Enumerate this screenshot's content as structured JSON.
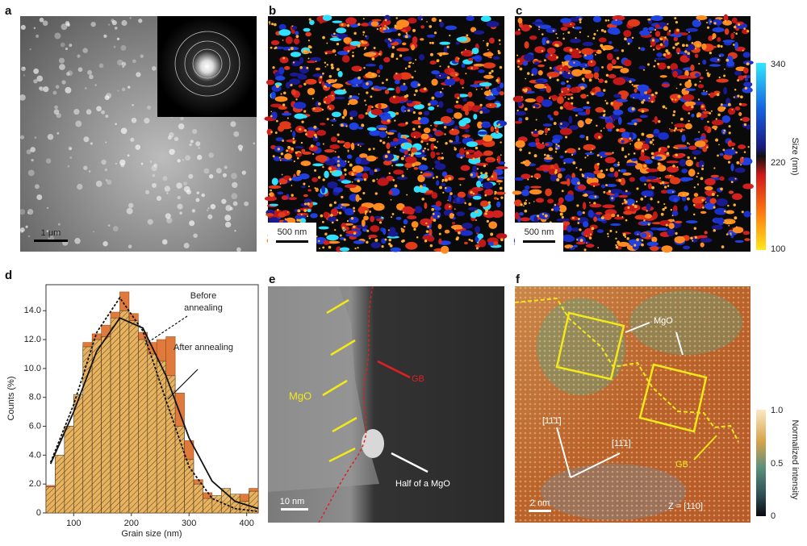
{
  "panels": {
    "a": {
      "letter": "a",
      "scale_bar": "1 μm"
    },
    "b": {
      "letter": "b",
      "scale_bar": "500 nm"
    },
    "c": {
      "letter": "c",
      "scale_bar": "500 nm",
      "colorbar": {
        "title": "Size (nm)",
        "ticks": [
          "340",
          "220",
          "100"
        ]
      }
    },
    "d": {
      "letter": "d"
    },
    "e": {
      "letter": "e",
      "mgo": "MgO",
      "gb": "GB",
      "half": "Half of a MgO",
      "scale_bar": "10 nm"
    },
    "f": {
      "letter": "f",
      "mgo": "MgO",
      "gb": "GB",
      "dir1": "[11̄1̄]",
      "dir2": "[11̄1]",
      "zone": "Z = [110]",
      "scale_bar": "2 nm",
      "colorbar": {
        "title": "Normalized intensity",
        "ticks": [
          "1.0",
          "0.5",
          "0"
        ]
      }
    }
  },
  "chart_data": {
    "type": "histogram",
    "x_label": "Grain size (nm)",
    "y_label": "Counts (%)",
    "bins": [
      52,
      68,
      84,
      100,
      116,
      132,
      148,
      164,
      180,
      196,
      212,
      228,
      244,
      260,
      276,
      292,
      308,
      324,
      340,
      356,
      372,
      388,
      404,
      420
    ],
    "series": [
      {
        "name": "Before annealing",
        "color": "#e07a3c",
        "values": [
          1.9,
          3.8,
          6.0,
          8.0,
          11.8,
          12.4,
          13.0,
          13.9,
          15.3,
          13.8,
          12.5,
          11.8,
          12.0,
          12.2,
          8.3,
          5.0,
          2.3,
          1.4,
          1.0,
          0.8,
          1.2,
          1.3,
          1.7
        ],
        "fit": [
          3.5,
          7.5,
          12.5,
          14.9,
          12.6,
          7.8,
          3.2,
          1.0,
          0.3,
          0.1
        ]
      },
      {
        "name": "After annealing",
        "color": "#e9b863",
        "values": [
          1.8,
          4.0,
          6.0,
          8.2,
          11.5,
          12.0,
          12.2,
          13.5,
          14.0,
          13.3,
          12.0,
          11.0,
          10.5,
          9.5,
          6.0,
          3.7,
          2.0,
          1.0,
          1.2,
          1.7,
          1.3,
          0.8,
          1.5
        ],
        "fit": [
          3.4,
          7.0,
          11.2,
          13.5,
          12.8,
          9.5,
          5.2,
          2.2,
          0.8,
          0.3
        ]
      }
    ],
    "fit_x": [
      60,
      100,
      140,
      180,
      220,
      260,
      300,
      340,
      380,
      420
    ],
    "xlim": [
      52,
      420
    ],
    "ylim": [
      0,
      15.8
    ],
    "xticks": [
      100,
      200,
      300,
      400
    ],
    "yticks": [
      0,
      {
        "value": 2,
        "label": "2.0"
      },
      {
        "value": 4,
        "label": "4.0"
      },
      {
        "value": 6,
        "label": "6.0"
      },
      {
        "value": 8,
        "label": "8.0"
      },
      {
        "value": 10,
        "label": "10.0"
      },
      {
        "value": 12,
        "label": "12.0"
      },
      {
        "value": 14,
        "label": "14.0"
      }
    ]
  }
}
